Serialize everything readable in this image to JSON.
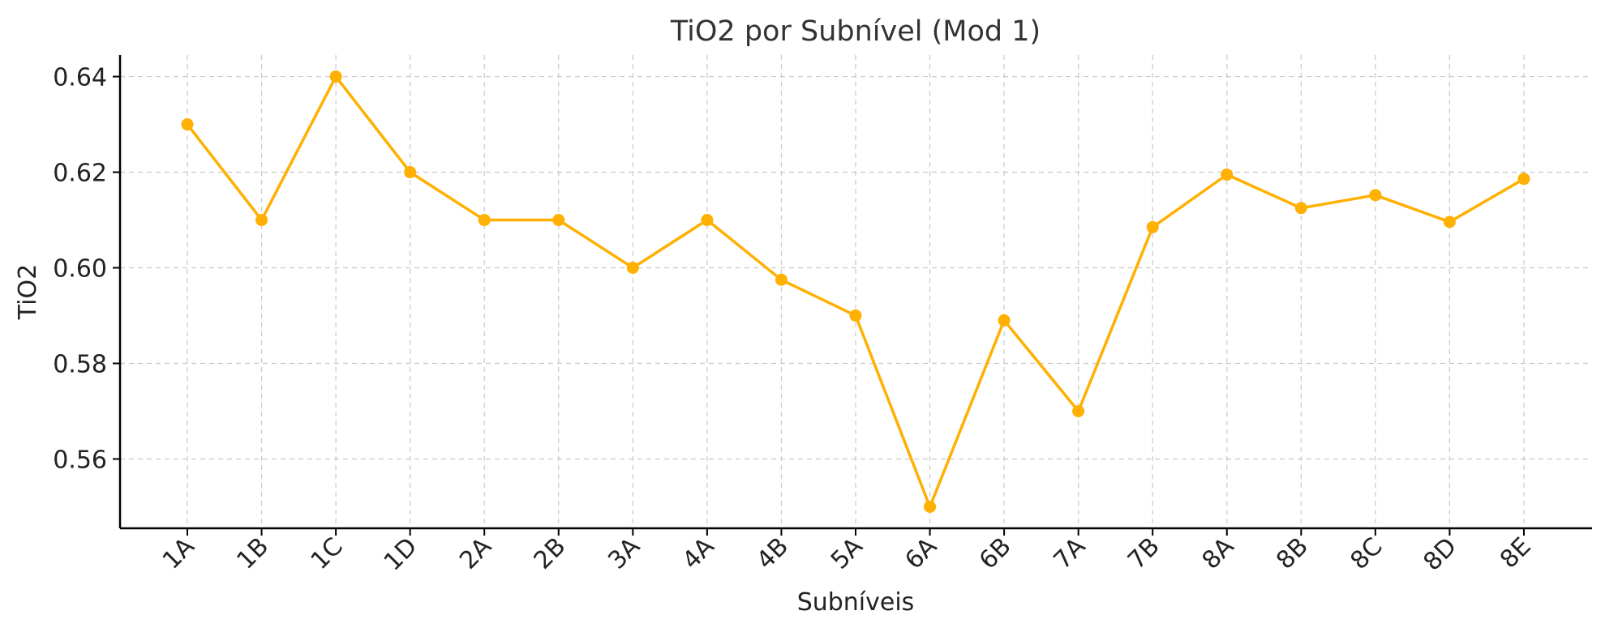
{
  "chart_data": {
    "type": "line",
    "title": "TiO2 por Subnível (Mod 1)",
    "xlabel": "Subníveis",
    "ylabel": "TiO2",
    "categories": [
      "1A",
      "1B",
      "1C",
      "1D",
      "2A",
      "2B",
      "3A",
      "4A",
      "4B",
      "5A",
      "6A",
      "6B",
      "7A",
      "7B",
      "8A",
      "8B",
      "8C",
      "8D",
      "8E"
    ],
    "series": [
      {
        "values": [
          0.63,
          0.61,
          0.64,
          0.62,
          0.61,
          0.61,
          0.6,
          0.61,
          0.5975,
          0.59,
          0.55,
          0.589,
          0.57,
          0.6085,
          0.6195,
          0.6125,
          0.6152,
          0.6096,
          0.6186
        ],
        "color": "#FFB000"
      }
    ],
    "ylim": [
      0.5455,
      0.6445
    ],
    "yticks": [
      "0.56",
      "0.58",
      "0.60",
      "0.62",
      "0.64"
    ],
    "x_tick_rotation": "45 degrees",
    "grid": true
  }
}
